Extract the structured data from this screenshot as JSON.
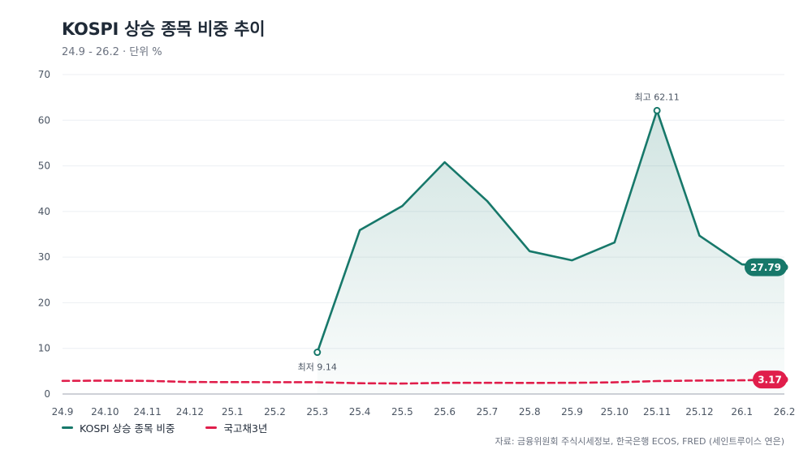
{
  "header": {
    "title": "KOSPI 상승 종목 비중 추이",
    "subtitle": "24.9 - 26.2 · 단위 %"
  },
  "legend": [
    {
      "label": "KOSPI 상승 종목 비중",
      "color": "#17786a"
    },
    {
      "label": "국고채3년",
      "color": "#e01e4b"
    }
  ],
  "source": "자료: 금융위원회 주식시세정보, 한국은행 ECOS, FRED (세인트루이스 연은)",
  "chart_data": {
    "type": "line",
    "x": [
      "24.9",
      "24.10",
      "24.11",
      "24.12",
      "25.1",
      "25.2",
      "25.3",
      "25.4",
      "25.5",
      "25.6",
      "25.7",
      "25.8",
      "25.9",
      "25.10",
      "25.11",
      "25.12",
      "26.1",
      "26.2"
    ],
    "ylim": [
      0,
      70
    ],
    "yticks": [
      0,
      10,
      20,
      30,
      40,
      50,
      60,
      70
    ],
    "grid": true,
    "legend_position": "bottom-left",
    "series": [
      {
        "name": "KOSPI 상승 종목 비중",
        "color": "#17786a",
        "fill": true,
        "values": [
          null,
          null,
          null,
          null,
          null,
          null,
          9.14,
          35.9,
          41.2,
          50.8,
          42.3,
          31.3,
          29.3,
          33.2,
          62.11,
          34.7,
          28.4,
          27.79
        ],
        "end_label": "27.79"
      },
      {
        "name": "국고채3년",
        "color": "#e01e4b",
        "dashed": true,
        "values": [
          2.88,
          2.93,
          2.88,
          2.63,
          2.62,
          2.59,
          2.57,
          2.37,
          2.29,
          2.45,
          2.46,
          2.43,
          2.45,
          2.55,
          2.85,
          2.95,
          3.0,
          3.17
        ],
        "end_label": "3.17"
      }
    ],
    "annotations": [
      {
        "series": 0,
        "index": 6,
        "text": "최저 9.14",
        "position": "below"
      },
      {
        "series": 0,
        "index": 14,
        "text": "최고 62.11",
        "position": "above"
      }
    ]
  }
}
